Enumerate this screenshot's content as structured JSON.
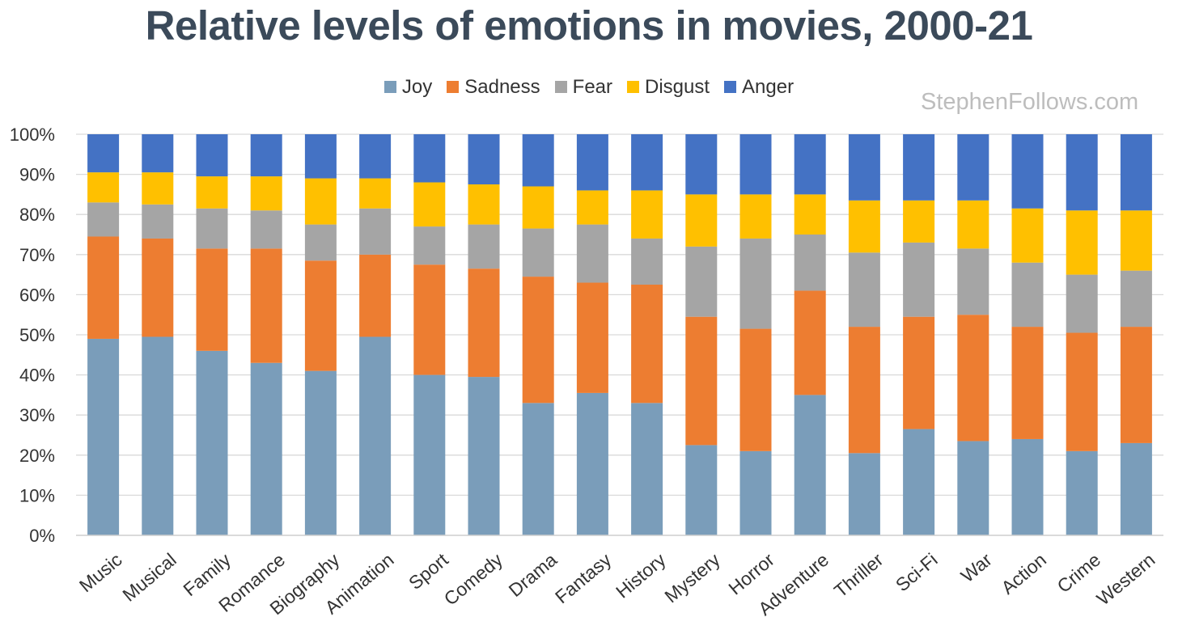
{
  "chart_data": {
    "type": "bar",
    "stacked": true,
    "title": "Relative levels of emotions in movies, 2000-21",
    "watermark": "StephenFollows.com",
    "xlabel": "",
    "ylabel": "",
    "ylim": [
      0,
      100
    ],
    "y_ticks": [
      "0%",
      "10%",
      "20%",
      "30%",
      "40%",
      "50%",
      "60%",
      "70%",
      "80%",
      "90%",
      "100%"
    ],
    "grid": true,
    "legend_position": "top",
    "categories": [
      "Music",
      "Musical",
      "Family",
      "Romance",
      "Biography",
      "Animation",
      "Sport",
      "Comedy",
      "Drama",
      "Fantasy",
      "History",
      "Mystery",
      "Horror",
      "Adventure",
      "Thriller",
      "Sci-Fi",
      "War",
      "Action",
      "Crime",
      "Western"
    ],
    "series": [
      {
        "name": "Joy",
        "color": "#7a9dba",
        "values": [
          49,
          49.5,
          46,
          43,
          41,
          49.5,
          40,
          39.5,
          33,
          35.5,
          33,
          22.5,
          21,
          35,
          20.5,
          26.5,
          23.5,
          24,
          21,
          23
        ]
      },
      {
        "name": "Sadness",
        "color": "#ed7d31",
        "values": [
          25.5,
          24.5,
          25.5,
          28.5,
          27.5,
          20.5,
          27.5,
          27,
          31.5,
          27.5,
          29.5,
          32,
          30.5,
          26,
          31.5,
          28,
          31.5,
          28,
          29.5,
          29
        ]
      },
      {
        "name": "Fear",
        "color": "#a5a5a5",
        "values": [
          8.5,
          8.5,
          10,
          9.5,
          9,
          11.5,
          9.5,
          11,
          12,
          14.5,
          11.5,
          17.5,
          22.5,
          14,
          18.5,
          18.5,
          16.5,
          16,
          14.5,
          14
        ]
      },
      {
        "name": "Disgust",
        "color": "#ffc000",
        "values": [
          7.5,
          8,
          8,
          8.5,
          11.5,
          7.5,
          11,
          10,
          10.5,
          8.5,
          12,
          13,
          11,
          10,
          13,
          10.5,
          12,
          13.5,
          16,
          15
        ]
      },
      {
        "name": "Anger",
        "color": "#4472c4",
        "values": [
          9.5,
          9.5,
          10.5,
          10.5,
          11,
          11,
          12,
          12.5,
          13,
          14,
          14,
          15,
          15,
          15,
          16.5,
          16.5,
          16.5,
          18.5,
          19,
          19
        ]
      }
    ]
  }
}
